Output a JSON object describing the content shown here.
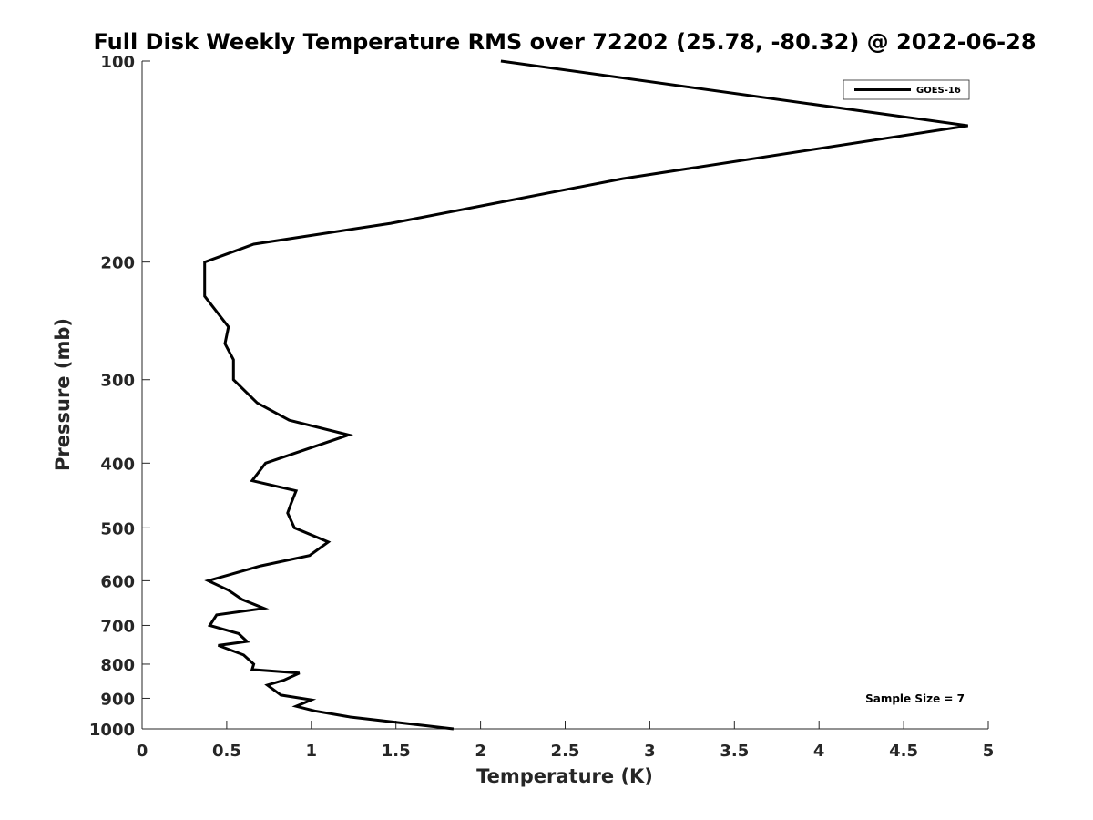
{
  "chart_data": {
    "type": "line",
    "title": "Full Disk Weekly Temperature RMS over 72202 (25.78, -80.32) @ 2022-06-28",
    "xlabel": "Temperature (K)",
    "ylabel": "Pressure (mb)",
    "xlim": [
      0,
      5
    ],
    "ylim": [
      100,
      1000
    ],
    "y_scale": "log",
    "y_reversed": true,
    "grid": false,
    "legend_position": "top-right",
    "x_ticks": [
      0,
      0.5,
      1,
      1.5,
      2,
      2.5,
      3,
      3.5,
      4,
      4.5,
      5
    ],
    "x_tick_labels": [
      "0",
      "0.5",
      "1",
      "1.5",
      "2",
      "2.5",
      "3",
      "3.5",
      "4",
      "4.5",
      "5"
    ],
    "y_ticks": [
      100,
      200,
      300,
      400,
      500,
      600,
      700,
      800,
      900,
      1000
    ],
    "y_tick_labels": [
      "100",
      "200",
      "300",
      "400",
      "500",
      "600",
      "700",
      "800",
      "900",
      "1000"
    ],
    "series": [
      {
        "name": "GOES-16",
        "color": "#000000",
        "points": [
          [
            2.12,
            100
          ],
          [
            4.88,
            125
          ],
          [
            2.84,
            150
          ],
          [
            1.47,
            175
          ],
          [
            0.66,
            188
          ],
          [
            0.37,
            200
          ],
          [
            0.37,
            225
          ],
          [
            0.51,
            250
          ],
          [
            0.49,
            265
          ],
          [
            0.54,
            280
          ],
          [
            0.54,
            300
          ],
          [
            0.68,
            325
          ],
          [
            0.87,
            345
          ],
          [
            1.22,
            363
          ],
          [
            0.73,
            400
          ],
          [
            0.65,
            425
          ],
          [
            0.91,
            440
          ],
          [
            0.88,
            460
          ],
          [
            0.86,
            475
          ],
          [
            0.9,
            500
          ],
          [
            1.1,
            525
          ],
          [
            0.99,
            550
          ],
          [
            0.7,
            570
          ],
          [
            0.39,
            600
          ],
          [
            0.51,
            620
          ],
          [
            0.59,
            640
          ],
          [
            0.72,
            660
          ],
          [
            0.44,
            675
          ],
          [
            0.4,
            700
          ],
          [
            0.57,
            720
          ],
          [
            0.62,
            740
          ],
          [
            0.45,
            750
          ],
          [
            0.6,
            775
          ],
          [
            0.66,
            800
          ],
          [
            0.65,
            815
          ],
          [
            0.93,
            825
          ],
          [
            0.84,
            845
          ],
          [
            0.74,
            860
          ],
          [
            0.82,
            890
          ],
          [
            1.0,
            905
          ],
          [
            0.91,
            925
          ],
          [
            1.02,
            940
          ],
          [
            1.23,
            960
          ],
          [
            1.84,
            1000
          ]
        ]
      }
    ],
    "annotations": [
      {
        "text": "Sample Size = 7",
        "position": "bottom-right"
      }
    ]
  }
}
